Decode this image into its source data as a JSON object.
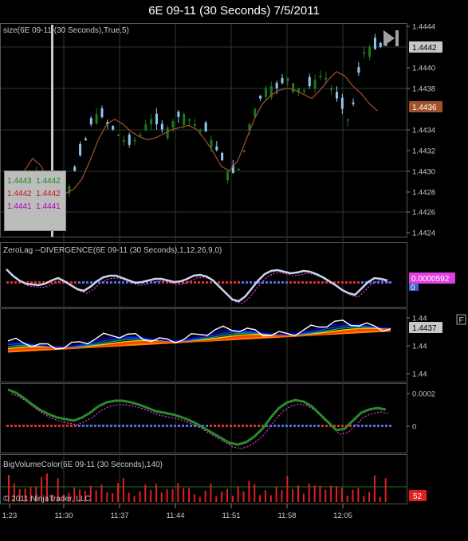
{
  "window": {
    "title": "6E 09-11 (30 Seconds)  7/5/2011"
  },
  "panels": {
    "price": {
      "label": "size(6E 09-11 (30 Seconds),True,5)",
      "axis_ticks": [
        "1.4444",
        "1.4442",
        "1.4440",
        "1.4438",
        "1.4436",
        "1.4434",
        "1.4432",
        "1.4430",
        "1.4428",
        "1.4426",
        "1.4424"
      ],
      "current_price_tag": "1.4442",
      "indicator_tag": "1.4436"
    },
    "zerolag": {
      "label": "ZeroLag --DIVERGENCE(6E 09-11 (30 Seconds),1,12,26,9,0)",
      "value_tag": "0.0000592",
      "zero_tag": "0"
    },
    "ma": {
      "axis_ticks": [
        "1.44",
        "1.44",
        "1.44"
      ],
      "value_tag": "1.4437",
      "f_button": "F"
    },
    "macd": {
      "axis_ticks": [
        "0.0002",
        "0"
      ]
    },
    "volume": {
      "label": "BigVolumeColor(6E 09-11 (30 Seconds),140)",
      "value_tag": "52"
    }
  },
  "data_box": {
    "rows": [
      {
        "a": "1.4443",
        "b": "1.4442",
        "color": "#1a8a1a"
      },
      {
        "a": "1.4442",
        "b": "1.4442",
        "color": "#c01818"
      },
      {
        "a": "1.4441",
        "b": "1.4441",
        "color": "#b000c0"
      }
    ]
  },
  "copyright": "© 2011 NinjaTrader, LLC",
  "time_axis": [
    "1:23",
    "11:30",
    "11:37",
    "11:44",
    "11:51",
    "11:58",
    "12:05"
  ],
  "colors": {
    "up_bar": "#1a7a1a",
    "down_bar": "#8ec8f0",
    "indicator_line": "#a0522d",
    "volume_bar": "#e02020",
    "grid": "#2a3a2a"
  }
}
